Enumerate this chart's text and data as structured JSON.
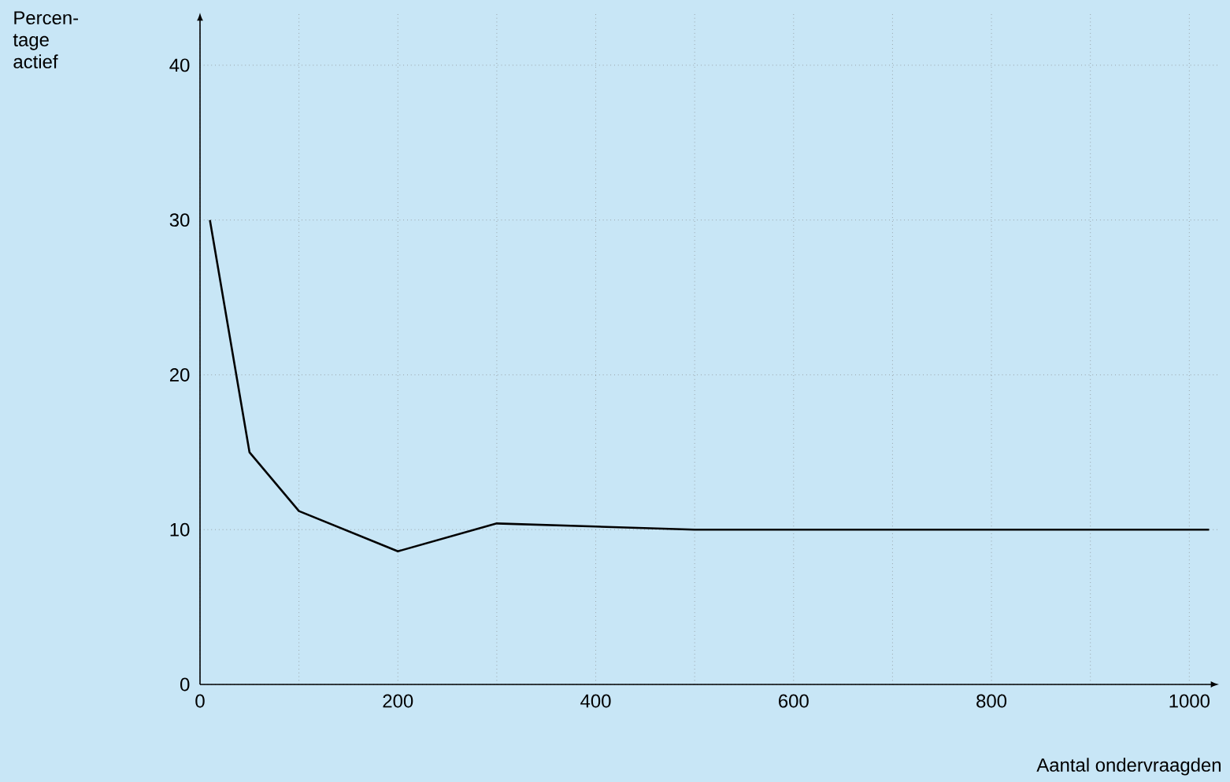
{
  "chart_data": {
    "type": "line",
    "xlabel": "Aantal ondervraagden",
    "ylabel": "Percen- tage actief",
    "x": [
      10,
      50,
      100,
      200,
      300,
      400,
      500,
      600,
      700,
      800,
      900,
      1020
    ],
    "values": [
      30,
      15,
      11.2,
      8.6,
      10.4,
      10.2,
      10,
      10,
      10,
      10,
      10,
      10
    ],
    "color": "#000000",
    "xlim": [
      0,
      1030
    ],
    "ylim": [
      0,
      43.4
    ],
    "xticks": [
      0,
      {
        "value": 100,
        "label": null
      },
      200,
      {
        "value": 300,
        "label": null
      },
      400,
      {
        "value": 500,
        "label": null
      },
      600,
      {
        "value": 700,
        "label": null
      },
      800,
      {
        "value": 900,
        "label": null
      },
      1000
    ],
    "yticks": [
      0,
      10,
      20,
      30,
      40
    ],
    "grid": true,
    "marker": "none",
    "line_style": "solid"
  }
}
